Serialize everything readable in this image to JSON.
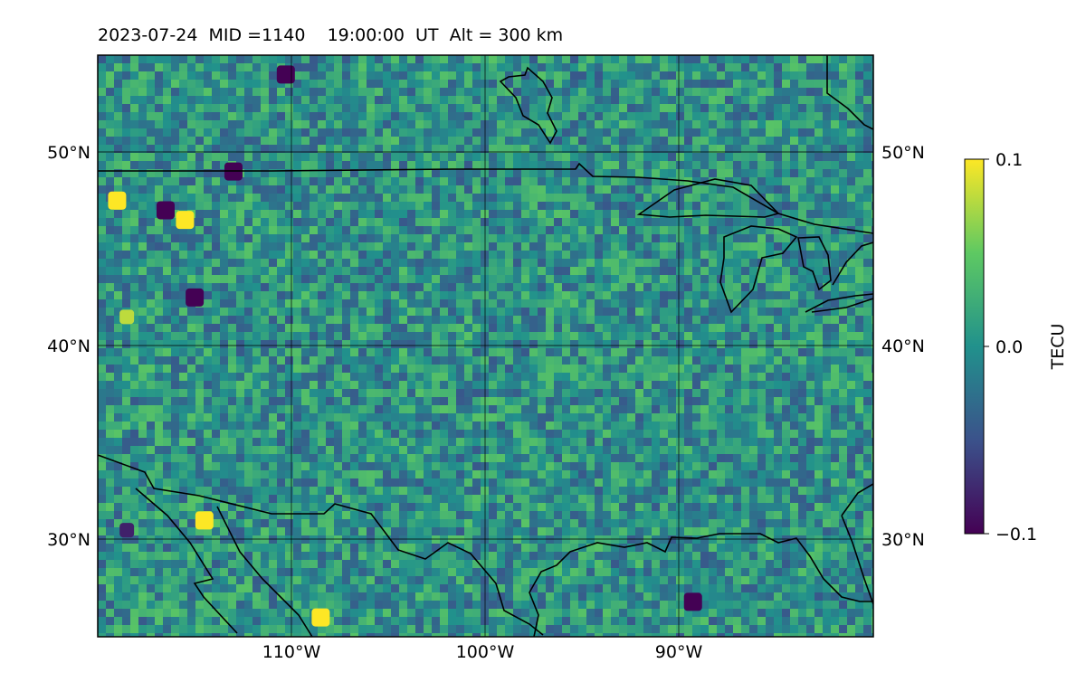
{
  "title": "2023-07-24  MID =1140    19:00:00  UT  Alt = 300 km",
  "map": {
    "lon_range": [
      -120,
      -80
    ],
    "lat_range": [
      25,
      55
    ],
    "lon_ticks": [
      {
        "value": -110,
        "label": "110°W"
      },
      {
        "value": -100,
        "label": "100°W"
      },
      {
        "value": -90,
        "label": "90°W"
      }
    ],
    "lat_ticks": [
      {
        "value": 30,
        "label": "30°N"
      },
      {
        "value": 40,
        "label": "40°N"
      },
      {
        "value": 50,
        "label": "50°N"
      }
    ],
    "colormap": "viridis",
    "background_level": 0.0,
    "anomalies": [
      {
        "lon": -110.3,
        "lat": 54.0,
        "value": -0.1
      },
      {
        "lon": -108.5,
        "lat": 26.0,
        "value": 0.1
      },
      {
        "lon": -119.0,
        "lat": 47.5,
        "value": 0.1
      },
      {
        "lon": -115.5,
        "lat": 46.5,
        "value": 0.1
      },
      {
        "lon": -114.5,
        "lat": 31.0,
        "value": 0.1
      },
      {
        "lon": -118.5,
        "lat": 41.5,
        "value": 0.08
      },
      {
        "lon": -89.3,
        "lat": 26.8,
        "value": -0.1
      },
      {
        "lon": -116.5,
        "lat": 47.0,
        "value": -0.1
      },
      {
        "lon": -113.0,
        "lat": 49.0,
        "value": -0.1
      },
      {
        "lon": -115.0,
        "lat": 42.5,
        "value": -0.1
      },
      {
        "lon": -118.5,
        "lat": 30.5,
        "value": -0.08
      }
    ]
  },
  "colorbar": {
    "label": "TECU",
    "min": -0.1,
    "max": 0.1,
    "ticks": [
      {
        "value": 0.1,
        "label": "0.1"
      },
      {
        "value": 0.0,
        "label": "0.0"
      },
      {
        "value": -0.1,
        "label": "−0.1"
      }
    ]
  }
}
